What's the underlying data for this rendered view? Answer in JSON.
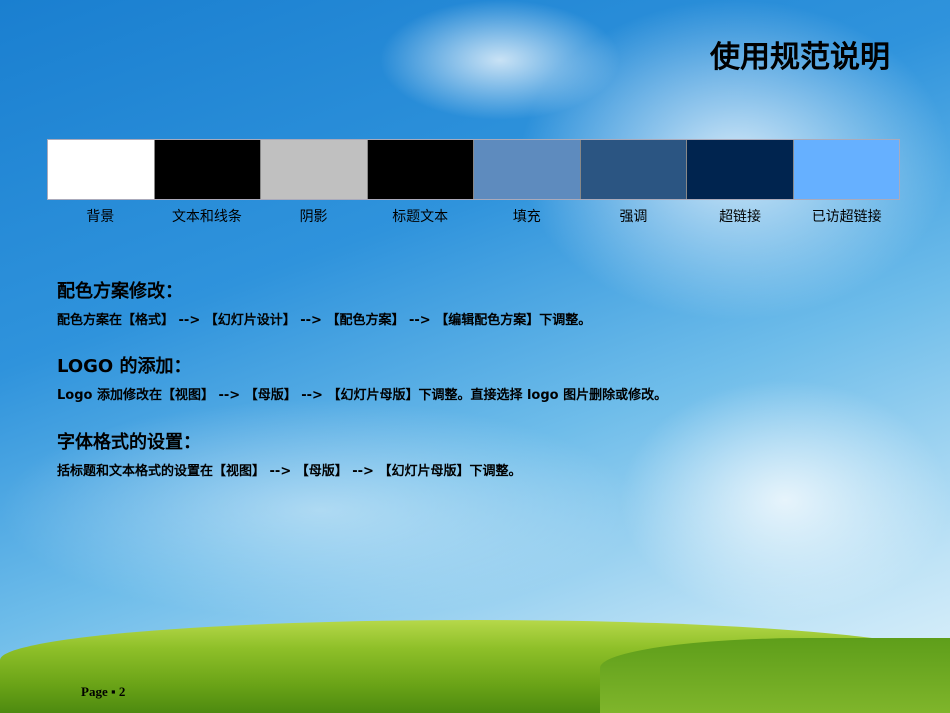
{
  "title": "使用规范说明",
  "swatches": [
    {
      "label": "背景",
      "color": "#FFFFFF"
    },
    {
      "label": "文本和线条",
      "color": "#000000"
    },
    {
      "label": "阴影",
      "color": "#C0C0C0"
    },
    {
      "label": "标题文本",
      "color": "#000000"
    },
    {
      "label": "填充",
      "color": "#5E8BBE"
    },
    {
      "label": "强调",
      "color": "#2B5582"
    },
    {
      "label": "超链接",
      "color": "#00244F"
    },
    {
      "label": "已访超链接",
      "color": "#66B0FF"
    }
  ],
  "sections": [
    {
      "heading": "配色方案修改：",
      "body": "配色方案在【格式】 --> 【幻灯片设计】 --> 【配色方案】 --> 【编辑配色方案】下调整。"
    },
    {
      "heading": "LOGO 的添加：",
      "body": "Logo 添加修改在【视图】 --> 【母版】 --> 【幻灯片母版】下调整。直接选择 logo 图片删除或修改。"
    },
    {
      "heading": "字体格式的设置：",
      "body": "括标题和文本格式的设置在【视图】 --> 【母版】 --> 【幻灯片母版】下调整。"
    }
  ],
  "footer": {
    "page": "Page ▪ 2"
  }
}
